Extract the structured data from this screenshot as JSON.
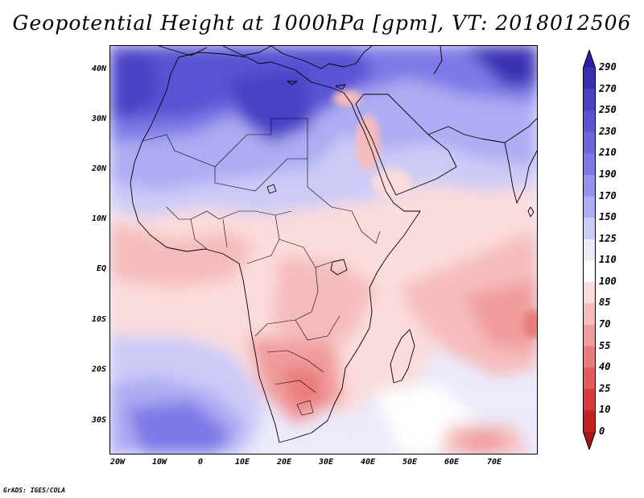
{
  "title": "Geopotential Height at 1000hPa [gpm], VT: 2018012506",
  "credit": "GrADS: IGES/COLA",
  "lat_labels": [
    "40N",
    "30N",
    "20N",
    "10N",
    "EQ",
    "10S",
    "20S",
    "30S"
  ],
  "lon_labels": [
    "20W",
    "10W",
    "0",
    "10E",
    "20E",
    "30E",
    "40E",
    "50E",
    "60E",
    "70E"
  ],
  "colorbar": {
    "levels": [
      "290",
      "270",
      "250",
      "230",
      "210",
      "190",
      "170",
      "150",
      "125",
      "110",
      "100",
      "85",
      "70",
      "55",
      "40",
      "25",
      "10",
      "0"
    ],
    "colors": [
      "#2c1e9e",
      "#3a30b4",
      "#4a41c6",
      "#5a53d3",
      "#6c66dd",
      "#7e79e6",
      "#9592ee",
      "#aeacf3",
      "#cccbf7",
      "#ebebfb",
      "#ffffff",
      "#fbdcdc",
      "#f6bcbc",
      "#f19c9c",
      "#ea7b7b",
      "#e35a5a",
      "#d83a3a",
      "#c42020",
      "#a81515"
    ]
  }
}
